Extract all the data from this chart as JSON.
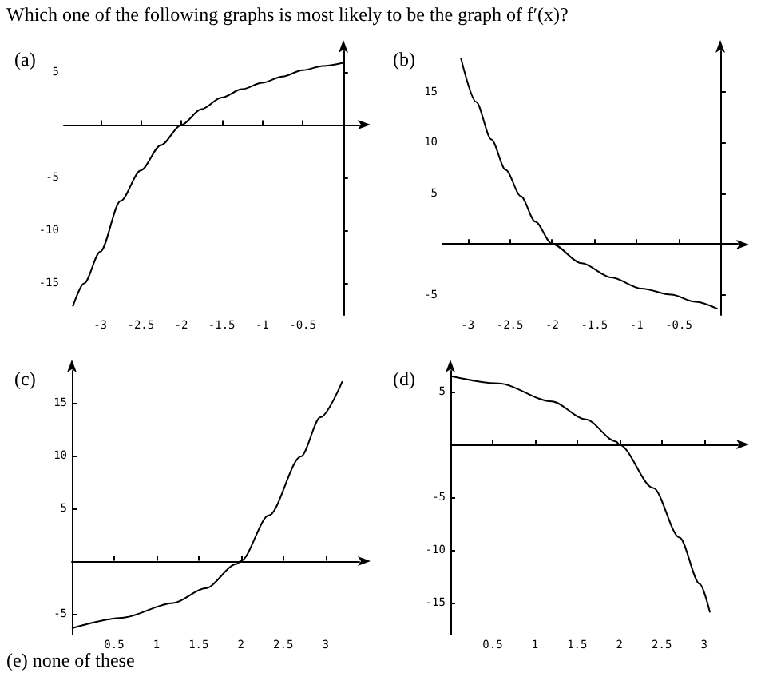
{
  "chart_data": [
    {
      "type": "line",
      "title": "(a)",
      "annotations": [
        "Which one of the following graphs is most likely to be the graph of f′(x)?"
      ],
      "x": [
        -3.34,
        -3.2,
        -3.0,
        -2.75,
        -2.5,
        -2.25,
        -2.0,
        -1.75,
        -1.5,
        -1.25,
        -1.0,
        -0.75,
        -0.5,
        -0.25,
        0
      ],
      "series": [
        {
          "color": "#000000",
          "values": [
            -17.2,
            -15,
            -12,
            -7.2,
            -4.3,
            -1.9,
            0,
            1.5,
            2.6,
            3.4,
            4.0,
            4.6,
            5.2,
            5.6,
            5.9
          ]
        }
      ],
      "xlim": [
        -3.45,
        0.2
      ],
      "ylim": [
        -18,
        7
      ],
      "xticks": [
        -3,
        -2.5,
        -2,
        -1.5,
        -1,
        -0.5
      ],
      "yticks": [
        -15,
        -10,
        -5,
        5
      ],
      "grid": false,
      "marker": "none"
    },
    {
      "type": "line",
      "title": "(b)",
      "x": [
        -3.08,
        -2.9,
        -2.72,
        -2.55,
        -2.37,
        -2.2,
        -2.0,
        -1.65,
        -1.3,
        -0.94,
        -0.59,
        -0.3,
        -0.04
      ],
      "series": [
        {
          "color": "#000000",
          "values": [
            18.3,
            14,
            10.3,
            7.3,
            4.7,
            2.2,
            0,
            -1.9,
            -3.3,
            -4.4,
            -5,
            -5.7,
            -6.4
          ]
        }
      ],
      "xlim": [
        -3.3,
        0.2
      ],
      "ylim": [
        -7,
        19
      ],
      "xticks": [
        -3,
        -2.5,
        -2,
        -1.5,
        -1,
        -0.5
      ],
      "yticks": [
        -5,
        5,
        10,
        15
      ],
      "grid": false,
      "marker": "none"
    },
    {
      "type": "line",
      "title": "(c)",
      "x": [
        0,
        0.59,
        1.2,
        1.58,
        1.95,
        2.0,
        2.33,
        2.71,
        2.94,
        3.2
      ],
      "series": [
        {
          "color": "#000000",
          "values": [
            -6.4,
            -5.4,
            -4.0,
            -2.6,
            -0.3,
            0,
            4.3,
            9.9,
            13.6,
            17
          ]
        }
      ],
      "xlim": [
        0,
        3.4
      ],
      "ylim": [
        -7,
        18
      ],
      "xticks": [
        0.5,
        1,
        1.5,
        2,
        2.5,
        3
      ],
      "yticks": [
        -5,
        5,
        10,
        15
      ],
      "grid": false,
      "marker": "none"
    },
    {
      "type": "line",
      "title": "(d)",
      "annotations": [
        "(e) none of these"
      ],
      "x": [
        0,
        0.57,
        1.2,
        1.6,
        1.96,
        2.0,
        2.4,
        2.71,
        2.95,
        3.07
      ],
      "series": [
        {
          "color": "#000000",
          "values": [
            6.5,
            5.8,
            4.1,
            2.4,
            0.3,
            0,
            -4.1,
            -8.8,
            -13.2,
            -15.9
          ]
        }
      ],
      "xlim": [
        0,
        3.4
      ],
      "ylim": [
        -18,
        7
      ],
      "xticks": [
        0.5,
        1,
        1.5,
        2,
        2.5,
        3
      ],
      "yticks": [
        -15,
        -10,
        -5,
        5
      ],
      "grid": false,
      "marker": "none"
    }
  ]
}
